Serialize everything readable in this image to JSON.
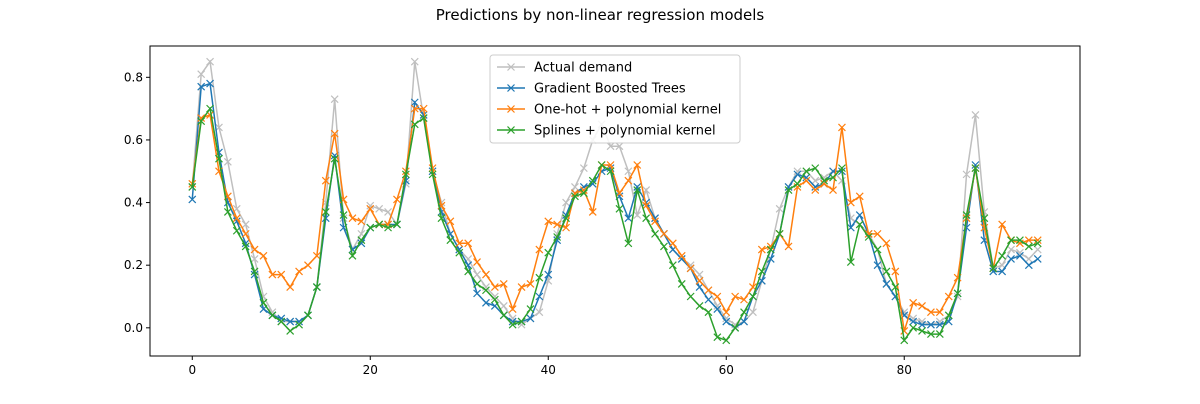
{
  "chart_data": {
    "type": "line",
    "title": "Predictions by non-linear regression models",
    "xlabel": "",
    "ylabel": "",
    "xlim": [
      -4.75,
      99.75
    ],
    "ylim": [
      -0.09,
      0.9
    ],
    "xticks": [
      0,
      20,
      40,
      60,
      80
    ],
    "yticks": [
      0.0,
      0.2,
      0.4,
      0.6,
      0.8
    ],
    "xtick_labels": [
      "0",
      "20",
      "40",
      "60",
      "80"
    ],
    "ytick_labels": [
      "0.0",
      "0.2",
      "0.4",
      "0.6",
      "0.8"
    ],
    "grid": false,
    "legend_position": "top-center",
    "marker": "x",
    "series": [
      {
        "name": "Actual demand",
        "color": "#bfbfbf",
        "values": [
          0.45,
          0.81,
          0.85,
          0.64,
          0.53,
          0.38,
          0.33,
          0.22,
          0.1,
          0.05,
          0.02,
          0.02,
          0.02,
          0.04,
          0.13,
          0.4,
          0.73,
          0.35,
          0.25,
          0.3,
          0.39,
          0.38,
          0.37,
          0.33,
          0.46,
          0.85,
          0.67,
          0.5,
          0.4,
          0.3,
          0.25,
          0.22,
          0.17,
          0.13,
          0.1,
          0.07,
          0.03,
          0.01,
          0.03,
          0.05,
          0.15,
          0.3,
          0.4,
          0.45,
          0.51,
          0.6,
          0.65,
          0.58,
          0.58,
          0.5,
          0.36,
          0.44,
          0.35,
          0.3,
          0.25,
          0.22,
          0.2,
          0.17,
          0.12,
          0.07,
          0.03,
          0.01,
          0.02,
          0.05,
          0.15,
          0.25,
          0.38,
          0.45,
          0.5,
          0.5,
          0.47,
          0.48,
          0.5,
          0.47,
          0.35,
          0.33,
          0.3,
          0.25,
          0.14,
          0.1,
          0.05,
          0.03,
          0.02,
          0.01,
          0.02,
          0.04,
          0.1,
          0.49,
          0.68,
          0.37,
          0.19,
          0.2,
          0.25,
          0.24,
          0.22,
          0.25
        ]
      },
      {
        "name": "Gradient Boosted Trees",
        "color": "#1f77b4",
        "values": [
          0.41,
          0.77,
          0.78,
          0.56,
          0.4,
          0.34,
          0.27,
          0.17,
          0.06,
          0.04,
          0.03,
          0.02,
          0.02,
          0.04,
          0.13,
          0.35,
          0.55,
          0.32,
          0.25,
          0.27,
          0.32,
          0.33,
          0.33,
          0.33,
          0.47,
          0.72,
          0.68,
          0.5,
          0.37,
          0.3,
          0.25,
          0.2,
          0.11,
          0.08,
          0.07,
          0.04,
          0.02,
          0.02,
          0.03,
          0.1,
          0.17,
          0.28,
          0.36,
          0.43,
          0.45,
          0.46,
          0.5,
          0.51,
          0.42,
          0.35,
          0.45,
          0.4,
          0.35,
          0.3,
          0.25,
          0.22,
          0.19,
          0.13,
          0.09,
          0.06,
          0.02,
          0.0,
          0.02,
          0.1,
          0.15,
          0.22,
          0.3,
          0.45,
          0.49,
          0.48,
          0.45,
          0.46,
          0.5,
          0.5,
          0.32,
          0.36,
          0.3,
          0.2,
          0.14,
          0.1,
          0.04,
          0.02,
          0.01,
          0.01,
          0.01,
          0.02,
          0.11,
          0.32,
          0.52,
          0.28,
          0.18,
          0.18,
          0.22,
          0.23,
          0.2,
          0.22
        ]
      },
      {
        "name": "One-hot + polynomial kernel",
        "color": "#ff7f0e",
        "values": [
          0.46,
          0.67,
          0.68,
          0.5,
          0.42,
          0.35,
          0.3,
          0.25,
          0.23,
          0.17,
          0.17,
          0.13,
          0.18,
          0.2,
          0.23,
          0.47,
          0.62,
          0.41,
          0.35,
          0.34,
          0.38,
          0.33,
          0.33,
          0.41,
          0.5,
          0.7,
          0.7,
          0.51,
          0.39,
          0.34,
          0.27,
          0.27,
          0.21,
          0.17,
          0.13,
          0.14,
          0.06,
          0.13,
          0.14,
          0.25,
          0.34,
          0.33,
          0.32,
          0.43,
          0.44,
          0.37,
          0.52,
          0.52,
          0.43,
          0.47,
          0.52,
          0.39,
          0.34,
          0.3,
          0.27,
          0.23,
          0.19,
          0.15,
          0.12,
          0.1,
          0.05,
          0.1,
          0.09,
          0.13,
          0.25,
          0.26,
          0.3,
          0.26,
          0.45,
          0.47,
          0.44,
          0.46,
          0.44,
          0.64,
          0.4,
          0.42,
          0.3,
          0.3,
          0.27,
          0.18,
          -0.01,
          0.08,
          0.07,
          0.05,
          0.05,
          0.1,
          0.16,
          0.35,
          0.51,
          0.32,
          0.19,
          0.33,
          0.28,
          0.27,
          0.28,
          0.28
        ]
      },
      {
        "name": "Splines + polynomial kernel",
        "color": "#2ca02c",
        "values": [
          0.45,
          0.66,
          0.7,
          0.54,
          0.37,
          0.31,
          0.26,
          0.18,
          0.08,
          0.04,
          0.02,
          -0.01,
          0.01,
          0.04,
          0.13,
          0.37,
          0.54,
          0.36,
          0.23,
          0.28,
          0.32,
          0.33,
          0.32,
          0.33,
          0.49,
          0.65,
          0.67,
          0.49,
          0.35,
          0.28,
          0.24,
          0.18,
          0.14,
          0.12,
          0.09,
          0.04,
          0.01,
          0.02,
          0.06,
          0.16,
          0.24,
          0.29,
          0.35,
          0.42,
          0.43,
          0.47,
          0.52,
          0.5,
          0.38,
          0.27,
          0.44,
          0.35,
          0.3,
          0.26,
          0.2,
          0.14,
          0.1,
          0.07,
          0.05,
          -0.03,
          -0.04,
          0.0,
          0.05,
          0.1,
          0.18,
          0.25,
          0.3,
          0.44,
          0.46,
          0.5,
          0.51,
          0.47,
          0.48,
          0.51,
          0.21,
          0.33,
          0.29,
          0.25,
          0.18,
          0.13,
          -0.04,
          0.0,
          -0.01,
          -0.02,
          -0.02,
          0.04,
          0.11,
          0.36,
          0.51,
          0.35,
          0.19,
          0.23,
          0.28,
          0.28,
          0.26,
          0.27
        ]
      }
    ]
  }
}
